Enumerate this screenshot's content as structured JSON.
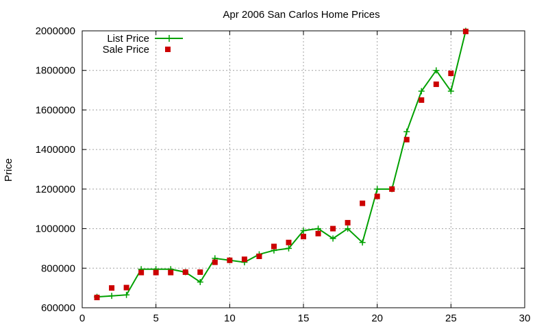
{
  "chart_data": {
    "type": "line",
    "title": "Apr 2006 San Carlos Home Prices",
    "xlabel": "",
    "ylabel": "Price",
    "xlim": [
      0,
      30
    ],
    "ylim": [
      600000,
      2000000
    ],
    "xticks": [
      0,
      5,
      10,
      15,
      20,
      25,
      30
    ],
    "yticks": [
      600000,
      800000,
      1000000,
      1200000,
      1400000,
      1600000,
      1800000,
      2000000
    ],
    "grid": true,
    "legend_position": "top-left",
    "series": [
      {
        "name": "List Price",
        "style": "line-with-plus-markers",
        "color": "#00a000",
        "x": [
          1,
          2,
          3,
          4,
          5,
          6,
          7,
          8,
          9,
          10,
          11,
          12,
          13,
          14,
          15,
          16,
          17,
          18,
          19,
          20,
          21,
          22,
          23,
          24,
          25,
          26
        ],
        "y": [
          655000,
          660000,
          665000,
          795000,
          795000,
          795000,
          780000,
          730000,
          850000,
          840000,
          830000,
          870000,
          890000,
          900000,
          990000,
          1000000,
          950000,
          1000000,
          930000,
          1200000,
          1200000,
          1490000,
          1695000,
          1800000,
          1695000,
          2000000
        ]
      },
      {
        "name": "Sale Price",
        "style": "square-markers",
        "color": "#cc0000",
        "x": [
          1,
          2,
          3,
          4,
          5,
          6,
          7,
          8,
          9,
          10,
          11,
          12,
          13,
          14,
          15,
          16,
          17,
          18,
          19,
          20,
          21,
          22,
          23,
          24,
          25,
          26
        ],
        "y": [
          652000,
          700000,
          702000,
          778000,
          778000,
          778000,
          780000,
          780000,
          830000,
          840000,
          845000,
          860000,
          910000,
          930000,
          960000,
          975000,
          1000000,
          1030000,
          1128000,
          1163000,
          1200000,
          1450000,
          1650000,
          1730000,
          1785000,
          1997000
        ]
      }
    ]
  }
}
